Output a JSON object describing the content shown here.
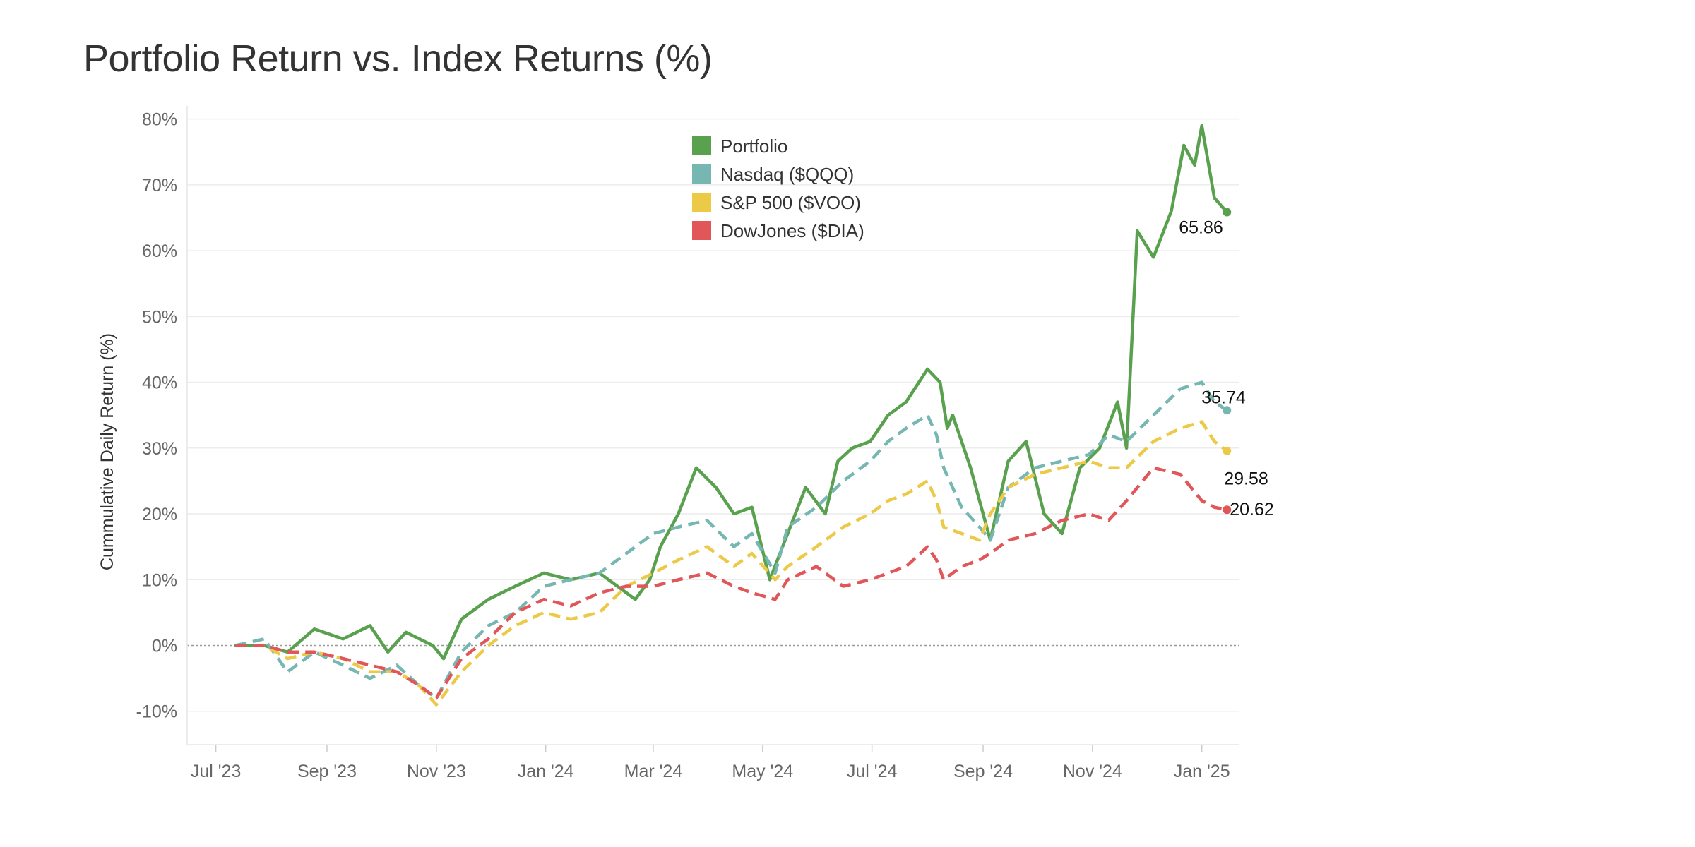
{
  "chart_data": {
    "type": "line",
    "title": "Portfolio Return vs. Index Returns (%)",
    "ylabel": "Cummulative Daily Return (%)",
    "xlabel": "",
    "ylim": [
      -14,
      82
    ],
    "xlim": [
      "2023-06-15",
      "2025-01-22"
    ],
    "yticks": [
      -10,
      0,
      10,
      20,
      30,
      40,
      50,
      60,
      70,
      80
    ],
    "ytick_labels": [
      "-10%",
      "0%",
      "10%",
      "20%",
      "30%",
      "40%",
      "50%",
      "60%",
      "70%",
      "80%"
    ],
    "xticks": [
      "2023-07-01",
      "2023-09-01",
      "2023-11-01",
      "2024-01-01",
      "2024-03-01",
      "2024-05-01",
      "2024-07-01",
      "2024-09-01",
      "2024-11-01",
      "2025-01-01"
    ],
    "xtick_labels": [
      "Jul '23",
      "Sep '23",
      "Nov '23",
      "Jan '24",
      "Mar '24",
      "May '24",
      "Jul '24",
      "Sep '24",
      "Nov '24",
      "Jan '25"
    ],
    "grid": true,
    "zero_line": true,
    "legend_position": "top-center",
    "series": [
      {
        "name": "Portfolio",
        "color": "#59a14f",
        "dashed": false,
        "end_label": "65.86",
        "points": [
          [
            "2023-07-12",
            0
          ],
          [
            "2023-07-28",
            0
          ],
          [
            "2023-08-10",
            -1
          ],
          [
            "2023-08-25",
            2.5
          ],
          [
            "2023-09-10",
            1
          ],
          [
            "2023-09-25",
            3
          ],
          [
            "2023-10-05",
            -1
          ],
          [
            "2023-10-15",
            2
          ],
          [
            "2023-10-30",
            0
          ],
          [
            "2023-11-05",
            -2
          ],
          [
            "2023-11-15",
            4
          ],
          [
            "2023-11-30",
            7
          ],
          [
            "2023-12-15",
            9
          ],
          [
            "2023-12-31",
            11
          ],
          [
            "2024-01-15",
            10
          ],
          [
            "2024-01-31",
            11
          ],
          [
            "2024-02-10",
            9
          ],
          [
            "2024-02-20",
            7
          ],
          [
            "2024-02-28",
            10
          ],
          [
            "2024-03-05",
            15
          ],
          [
            "2024-03-15",
            20
          ],
          [
            "2024-03-25",
            27
          ],
          [
            "2024-04-05",
            24
          ],
          [
            "2024-04-15",
            20
          ],
          [
            "2024-04-25",
            21
          ],
          [
            "2024-05-05",
            10
          ],
          [
            "2024-05-15",
            17
          ],
          [
            "2024-05-25",
            24
          ],
          [
            "2024-06-05",
            20
          ],
          [
            "2024-06-12",
            28
          ],
          [
            "2024-06-20",
            30
          ],
          [
            "2024-06-30",
            31
          ],
          [
            "2024-07-10",
            35
          ],
          [
            "2024-07-20",
            37
          ],
          [
            "2024-08-01",
            42
          ],
          [
            "2024-08-08",
            40
          ],
          [
            "2024-08-12",
            33
          ],
          [
            "2024-08-15",
            35
          ],
          [
            "2024-08-25",
            27
          ],
          [
            "2024-09-01",
            20
          ],
          [
            "2024-09-05",
            16
          ],
          [
            "2024-09-15",
            28
          ],
          [
            "2024-09-25",
            31
          ],
          [
            "2024-10-05",
            20
          ],
          [
            "2024-10-15",
            17
          ],
          [
            "2024-10-25",
            27
          ],
          [
            "2024-11-05",
            30
          ],
          [
            "2024-11-15",
            37
          ],
          [
            "2024-11-20",
            30
          ],
          [
            "2024-11-26",
            63
          ],
          [
            "2024-12-05",
            59
          ],
          [
            "2024-12-15",
            66
          ],
          [
            "2024-12-22",
            76
          ],
          [
            "2024-12-28",
            73
          ],
          [
            "2025-01-01",
            79
          ],
          [
            "2025-01-08",
            68
          ],
          [
            "2025-01-15",
            65.86
          ]
        ]
      },
      {
        "name": "Nasdaq ($QQQ)",
        "color": "#76b7b2",
        "dashed": true,
        "end_label": "35.74",
        "points": [
          [
            "2023-07-12",
            0
          ],
          [
            "2023-07-28",
            1
          ],
          [
            "2023-08-10",
            -4
          ],
          [
            "2023-08-25",
            -1
          ],
          [
            "2023-09-10",
            -3
          ],
          [
            "2023-09-25",
            -5
          ],
          [
            "2023-10-10",
            -3
          ],
          [
            "2023-10-22",
            -6
          ],
          [
            "2023-11-01",
            -8
          ],
          [
            "2023-11-15",
            -1
          ],
          [
            "2023-11-30",
            3
          ],
          [
            "2023-12-15",
            5
          ],
          [
            "2023-12-31",
            9
          ],
          [
            "2024-01-15",
            10
          ],
          [
            "2024-01-31",
            11
          ],
          [
            "2024-02-15",
            14
          ],
          [
            "2024-03-01",
            17
          ],
          [
            "2024-03-15",
            18
          ],
          [
            "2024-03-31",
            19
          ],
          [
            "2024-04-15",
            15
          ],
          [
            "2024-04-25",
            17
          ],
          [
            "2024-05-08",
            11
          ],
          [
            "2024-05-15",
            18
          ],
          [
            "2024-05-31",
            21
          ],
          [
            "2024-06-15",
            25
          ],
          [
            "2024-06-30",
            28
          ],
          [
            "2024-07-10",
            31
          ],
          [
            "2024-07-20",
            33
          ],
          [
            "2024-08-01",
            35
          ],
          [
            "2024-08-06",
            32
          ],
          [
            "2024-08-10",
            27
          ],
          [
            "2024-08-20",
            21
          ],
          [
            "2024-08-30",
            18
          ],
          [
            "2024-09-05",
            16
          ],
          [
            "2024-09-15",
            24
          ],
          [
            "2024-09-30",
            27
          ],
          [
            "2024-10-15",
            28
          ],
          [
            "2024-10-30",
            29
          ],
          [
            "2024-11-10",
            32
          ],
          [
            "2024-11-20",
            31
          ],
          [
            "2024-12-05",
            35
          ],
          [
            "2024-12-20",
            39
          ],
          [
            "2025-01-01",
            40
          ],
          [
            "2025-01-08",
            37
          ],
          [
            "2025-01-15",
            35.74
          ]
        ]
      },
      {
        "name": "S&P 500 ($VOO)",
        "color": "#edc948",
        "dashed": true,
        "end_label": "29.58",
        "points": [
          [
            "2023-07-12",
            0
          ],
          [
            "2023-07-28",
            0
          ],
          [
            "2023-08-10",
            -2
          ],
          [
            "2023-08-25",
            -1
          ],
          [
            "2023-09-10",
            -2
          ],
          [
            "2023-09-25",
            -4
          ],
          [
            "2023-10-10",
            -4
          ],
          [
            "2023-10-22",
            -6
          ],
          [
            "2023-11-01",
            -9
          ],
          [
            "2023-11-15",
            -4
          ],
          [
            "2023-11-30",
            0
          ],
          [
            "2023-12-15",
            3
          ],
          [
            "2023-12-31",
            5
          ],
          [
            "2024-01-15",
            4
          ],
          [
            "2024-01-31",
            5
          ],
          [
            "2024-02-15",
            9
          ],
          [
            "2024-03-01",
            11
          ],
          [
            "2024-03-15",
            13
          ],
          [
            "2024-03-31",
            15
          ],
          [
            "2024-04-15",
            12
          ],
          [
            "2024-04-25",
            14
          ],
          [
            "2024-05-08",
            10
          ],
          [
            "2024-05-15",
            12
          ],
          [
            "2024-05-31",
            15
          ],
          [
            "2024-06-15",
            18
          ],
          [
            "2024-06-30",
            20
          ],
          [
            "2024-07-10",
            22
          ],
          [
            "2024-07-20",
            23
          ],
          [
            "2024-08-01",
            25
          ],
          [
            "2024-08-06",
            22
          ],
          [
            "2024-08-10",
            18
          ],
          [
            "2024-08-20",
            17
          ],
          [
            "2024-08-30",
            16
          ],
          [
            "2024-09-05",
            20
          ],
          [
            "2024-09-15",
            24
          ],
          [
            "2024-09-30",
            26
          ],
          [
            "2024-10-15",
            27
          ],
          [
            "2024-10-30",
            28
          ],
          [
            "2024-11-10",
            27
          ],
          [
            "2024-11-20",
            27
          ],
          [
            "2024-12-05",
            31
          ],
          [
            "2024-12-20",
            33
          ],
          [
            "2025-01-01",
            34
          ],
          [
            "2025-01-08",
            31
          ],
          [
            "2025-01-15",
            29.58
          ]
        ]
      },
      {
        "name": "DowJones ($DIA)",
        "color": "#e15759",
        "dashed": true,
        "end_label": "20.62",
        "points": [
          [
            "2023-07-12",
            0
          ],
          [
            "2023-07-28",
            0
          ],
          [
            "2023-08-10",
            -1
          ],
          [
            "2023-08-25",
            -1
          ],
          [
            "2023-09-10",
            -2
          ],
          [
            "2023-09-25",
            -3
          ],
          [
            "2023-10-10",
            -4
          ],
          [
            "2023-10-22",
            -6
          ],
          [
            "2023-11-01",
            -8
          ],
          [
            "2023-11-15",
            -2
          ],
          [
            "2023-11-30",
            1
          ],
          [
            "2023-12-15",
            5
          ],
          [
            "2023-12-31",
            7
          ],
          [
            "2024-01-15",
            6
          ],
          [
            "2024-01-31",
            8
          ],
          [
            "2024-02-15",
            9
          ],
          [
            "2024-03-01",
            9
          ],
          [
            "2024-03-15",
            10
          ],
          [
            "2024-03-31",
            11
          ],
          [
            "2024-04-15",
            9
          ],
          [
            "2024-04-25",
            8
          ],
          [
            "2024-05-08",
            7
          ],
          [
            "2024-05-15",
            10
          ],
          [
            "2024-05-31",
            12
          ],
          [
            "2024-06-15",
            9
          ],
          [
            "2024-06-30",
            10
          ],
          [
            "2024-07-10",
            11
          ],
          [
            "2024-07-20",
            12
          ],
          [
            "2024-08-01",
            15
          ],
          [
            "2024-08-06",
            13
          ],
          [
            "2024-08-10",
            10
          ],
          [
            "2024-08-20",
            12
          ],
          [
            "2024-08-30",
            13
          ],
          [
            "2024-09-05",
            14
          ],
          [
            "2024-09-15",
            16
          ],
          [
            "2024-09-30",
            17
          ],
          [
            "2024-10-15",
            19
          ],
          [
            "2024-10-30",
            20
          ],
          [
            "2024-11-10",
            19
          ],
          [
            "2024-11-20",
            22
          ],
          [
            "2024-12-05",
            27
          ],
          [
            "2024-12-20",
            26
          ],
          [
            "2025-01-01",
            22
          ],
          [
            "2025-01-08",
            21
          ],
          [
            "2025-01-15",
            20.62
          ]
        ]
      }
    ]
  }
}
